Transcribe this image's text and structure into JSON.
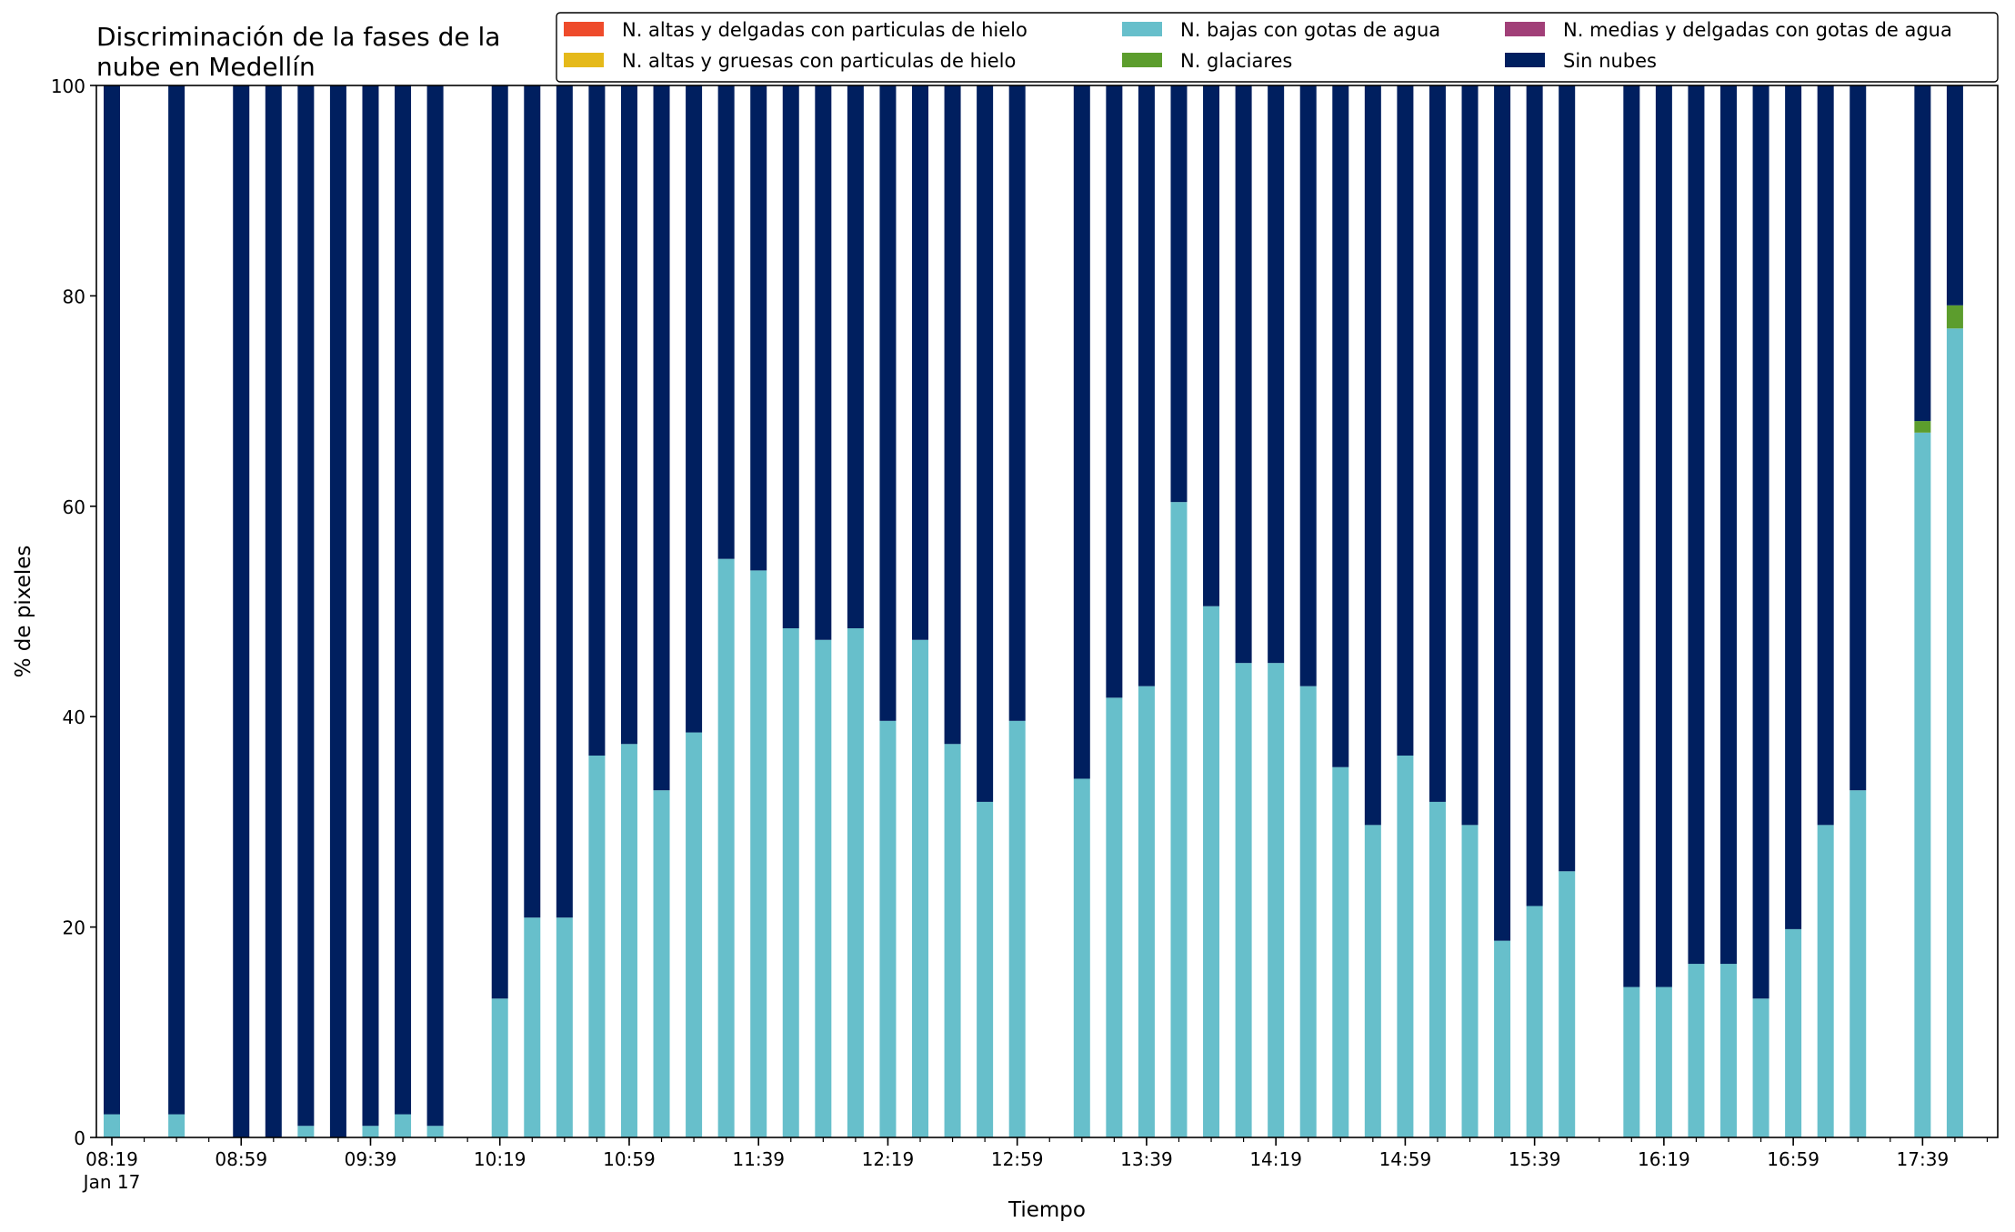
{
  "chart_data": {
    "type": "bar",
    "stacked": true,
    "title": [
      "Discriminación de la fases de la",
      "nube en Medellín"
    ],
    "xlabel": "Tiempo",
    "ylabel": "% de pixeles",
    "ylim": [
      0,
      100
    ],
    "yticks": [
      0,
      20,
      40,
      60,
      80,
      100
    ],
    "xticks": [
      "08:19",
      "08:59",
      "09:39",
      "10:19",
      "10:59",
      "11:39",
      "12:19",
      "12:59",
      "13:39",
      "14:19",
      "14:59",
      "15:39",
      "16:19",
      "16:59",
      "17:39"
    ],
    "xtick_sublabel": "Jan 17",
    "grid": false,
    "legend_position": "top-right",
    "legend": [
      {
        "name": "N. altas y delgadas con particulas de hielo",
        "color": "#ee4b2b"
      },
      {
        "name": "N. altas y gruesas con particulas de hielo",
        "color": "#e5b91a"
      },
      {
        "name": "N. bajas con gotas de agua",
        "color": "#67bfcb"
      },
      {
        "name": "N. glaciares",
        "color": "#5c9d2d"
      },
      {
        "name": "N. medias y delgadas con gotas de agua",
        "color": "#a13f78"
      },
      {
        "name": "Sin nubes",
        "color": "#001f5f"
      }
    ],
    "x": [
      "08:19",
      "08:29",
      "08:39",
      "08:49",
      "08:59",
      "09:09",
      "09:19",
      "09:29",
      "09:39",
      "09:49",
      "09:59",
      "10:09",
      "10:19",
      "10:29",
      "10:39",
      "10:49",
      "10:59",
      "11:09",
      "11:19",
      "11:29",
      "11:39",
      "11:49",
      "11:59",
      "12:09",
      "12:19",
      "12:29",
      "12:39",
      "12:49",
      "12:59",
      "13:09",
      "13:19",
      "13:29",
      "13:39",
      "13:49",
      "13:59",
      "14:09",
      "14:19",
      "14:29",
      "14:39",
      "14:49",
      "14:59",
      "15:09",
      "15:19",
      "15:29",
      "15:39",
      "15:49",
      "15:59",
      "16:09",
      "16:19",
      "16:29",
      "16:39",
      "16:49",
      "16:59",
      "17:09",
      "17:19",
      "17:29",
      "17:39",
      "17:49"
    ],
    "series": [
      {
        "name": "N. altas y delgadas con particulas de hielo",
        "color": "#ee4b2b",
        "values": [
          0,
          null,
          0,
          null,
          0,
          0,
          0,
          0,
          0,
          0,
          0,
          null,
          0,
          0,
          0,
          0,
          0,
          0,
          0,
          0,
          0,
          0,
          0,
          0,
          0,
          0,
          0,
          0,
          0,
          null,
          0,
          0,
          0,
          0,
          0,
          0,
          0,
          0,
          0,
          0,
          0,
          0,
          0,
          0,
          0,
          0,
          null,
          0,
          0,
          0,
          0,
          0,
          0,
          0,
          0,
          null,
          0,
          0
        ]
      },
      {
        "name": "N. altas y gruesas con particulas de hielo",
        "color": "#e5b91a",
        "values": [
          0,
          null,
          0,
          null,
          0,
          0,
          0,
          0,
          0,
          0,
          0,
          null,
          0,
          0,
          0,
          0,
          0,
          0,
          0,
          0,
          0,
          0,
          0,
          0,
          0,
          0,
          0,
          0,
          0,
          null,
          0,
          0,
          0,
          0,
          0,
          0,
          0,
          0,
          0,
          0,
          0,
          0,
          0,
          0,
          0,
          0,
          null,
          0,
          0,
          0,
          0,
          0,
          0,
          0,
          0,
          null,
          0,
          0
        ]
      },
      {
        "name": "N. bajas con gotas de agua",
        "color": "#67bfcb",
        "values": [
          2.2,
          null,
          2.2,
          null,
          0,
          0,
          1.1,
          0,
          1.1,
          2.2,
          1.1,
          null,
          13.2,
          20.9,
          20.9,
          36.3,
          37.4,
          33.0,
          38.5,
          55.0,
          53.9,
          48.4,
          47.3,
          48.4,
          39.6,
          47.3,
          37.4,
          31.9,
          39.6,
          null,
          34.1,
          41.8,
          42.9,
          60.4,
          50.5,
          45.1,
          45.1,
          42.9,
          35.2,
          29.7,
          36.3,
          31.9,
          29.7,
          18.7,
          22.0,
          25.3,
          null,
          14.3,
          14.3,
          16.5,
          16.5,
          13.2,
          19.8,
          29.7,
          33.0,
          null,
          67.0,
          76.9
        ]
      },
      {
        "name": "N. glaciares",
        "color": "#5c9d2d",
        "values": [
          0,
          null,
          0,
          null,
          0,
          0,
          0,
          0,
          0,
          0,
          0,
          null,
          0,
          0,
          0,
          0,
          0,
          0,
          0,
          0,
          0,
          0,
          0,
          0,
          0,
          0,
          0,
          0,
          0,
          null,
          0,
          0,
          0,
          0,
          0,
          0,
          0,
          0,
          0,
          0,
          0,
          0,
          0,
          0,
          0,
          0,
          null,
          0,
          0,
          0,
          0,
          0,
          0,
          0,
          0,
          null,
          1.1,
          2.2
        ]
      },
      {
        "name": "N. medias y delgadas con gotas de agua",
        "color": "#a13f78",
        "values": [
          0,
          null,
          0,
          null,
          0,
          0,
          0,
          0,
          0,
          0,
          0,
          null,
          0,
          0,
          0,
          0,
          0,
          0,
          0,
          0,
          0,
          0,
          0,
          0,
          0,
          0,
          0,
          0,
          0,
          null,
          0,
          0,
          0,
          0,
          0,
          0,
          0,
          0,
          0,
          0,
          0,
          0,
          0,
          0,
          0,
          0,
          null,
          0,
          0,
          0,
          0,
          0,
          0,
          0,
          0,
          null,
          0,
          0
        ]
      },
      {
        "name": "Sin nubes",
        "color": "#001f5f",
        "values": [
          97.8,
          null,
          97.8,
          null,
          100,
          100,
          98.9,
          100,
          98.9,
          97.8,
          98.9,
          null,
          86.8,
          79.1,
          79.1,
          63.7,
          62.6,
          67.0,
          61.5,
          45.0,
          46.1,
          51.6,
          52.7,
          51.6,
          60.4,
          52.7,
          62.6,
          68.1,
          60.4,
          null,
          65.9,
          58.2,
          57.1,
          39.6,
          49.5,
          54.9,
          54.9,
          57.1,
          64.8,
          70.3,
          63.7,
          68.1,
          70.3,
          81.3,
          78.0,
          74.7,
          null,
          85.7,
          85.7,
          83.5,
          83.5,
          86.8,
          80.2,
          70.3,
          67.0,
          null,
          31.9,
          20.9
        ]
      }
    ]
  }
}
